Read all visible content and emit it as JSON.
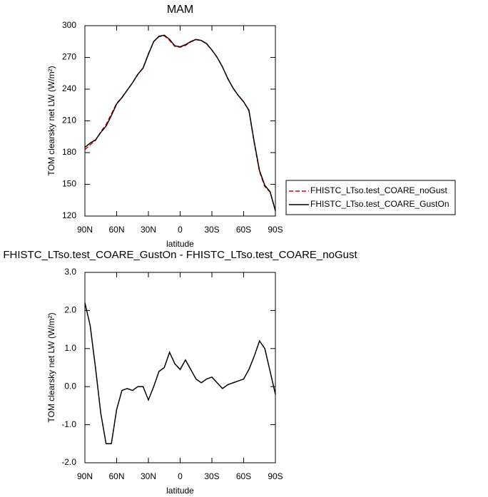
{
  "chart_data": [
    {
      "type": "line",
      "title": "MAM",
      "x_label": "latitude",
      "y_label": "TOM clearsky net LW (W/m²)",
      "x": [
        90,
        85,
        80,
        75,
        70,
        65,
        60,
        55,
        50,
        45,
        40,
        35,
        30,
        25,
        20,
        15,
        10,
        5,
        0,
        -5,
        -10,
        -15,
        -20,
        -25,
        -30,
        -35,
        -40,
        -45,
        -50,
        -55,
        -60,
        -65,
        -70,
        -75,
        -80,
        -85,
        -90
      ],
      "xlim": [
        90,
        -90
      ],
      "xticks": [
        {
          "value": 90,
          "label": "90N"
        },
        {
          "value": 60,
          "label": "60N"
        },
        {
          "value": 30,
          "label": "30N"
        },
        0,
        {
          "value": -30,
          "label": "30S"
        },
        {
          "value": -60,
          "label": "60S"
        },
        {
          "value": -90,
          "label": "90S"
        }
      ],
      "ylim": [
        120,
        300
      ],
      "yticks": [
        120,
        150,
        180,
        210,
        240,
        270,
        300
      ],
      "legend": "right",
      "series": [
        {
          "name": "FHISTC_LTso.test_COARE_noGust",
          "color": "#e00000",
          "line_style": "dashed",
          "values": [
            182.8,
            187.4,
            191.5,
            199.7,
            206.5,
            216.5,
            226.6,
            232.1,
            239.1,
            246.1,
            254,
            260,
            273.4,
            285,
            289.6,
            290.5,
            286.1,
            280.4,
            279.6,
            281.3,
            284.6,
            286.8,
            285.9,
            282.8,
            276.8,
            269.9,
            261.1,
            250,
            240.9,
            233.9,
            227.8,
            219.6,
            189.2,
            161.8,
            148,
            142.6,
            125.2
          ]
        },
        {
          "name": "FHISTC_LTso.test_COARE_GustOn",
          "color": "#000000",
          "line_style": "solid",
          "values": [
            185,
            189,
            192,
            199,
            205,
            215,
            226,
            232,
            239,
            246,
            254,
            260,
            273,
            285,
            290,
            291,
            287,
            281,
            280,
            282,
            285,
            287,
            286,
            283,
            277,
            270,
            261,
            250,
            241,
            234,
            228,
            220,
            190,
            163,
            149,
            143,
            125
          ]
        }
      ]
    },
    {
      "type": "line",
      "title": "FHISTC_LTso.test_COARE_GustOn - FHISTC_LTso.test_COARE_noGust",
      "x_label": "latitude",
      "y_label": "TOM clearsky net LW (W/m²)",
      "x": [
        90,
        85,
        80,
        75,
        70,
        65,
        60,
        55,
        50,
        45,
        40,
        35,
        30,
        25,
        20,
        15,
        10,
        5,
        0,
        -5,
        -10,
        -15,
        -20,
        -25,
        -30,
        -35,
        -40,
        -45,
        -50,
        -55,
        -60,
        -65,
        -70,
        -75,
        -80,
        -85,
        -90
      ],
      "xlim": [
        90,
        -90
      ],
      "xticks": [
        {
          "value": 90,
          "label": "90N"
        },
        {
          "value": 60,
          "label": "60N"
        },
        {
          "value": 30,
          "label": "30N"
        },
        0,
        {
          "value": -30,
          "label": "30S"
        },
        {
          "value": -60,
          "label": "60S"
        },
        {
          "value": -90,
          "label": "90S"
        }
      ],
      "ylim": [
        -2,
        3
      ],
      "yticks": [
        {
          "value": -2,
          "label": "-2.0"
        },
        {
          "value": -1,
          "label": "-1.0"
        },
        {
          "value": 0,
          "label": "0.0"
        },
        {
          "value": 1,
          "label": "1.0"
        },
        {
          "value": 2,
          "label": "2.0"
        },
        {
          "value": 3,
          "label": "3.0"
        }
      ],
      "series": [
        {
          "color": "#000000",
          "line_style": "solid",
          "values": [
            2.2,
            1.6,
            0.5,
            -0.7,
            -1.5,
            -1.5,
            -0.6,
            -0.1,
            -0.05,
            -0.1,
            0,
            0,
            -0.35,
            0,
            0.4,
            0.5,
            0.9,
            0.6,
            0.45,
            0.7,
            0.45,
            0.2,
            0.1,
            0.2,
            0.25,
            0.1,
            -0.05,
            0.05,
            0.1,
            0.15,
            0.2,
            0.45,
            0.8,
            1.2,
            1.0,
            0.4,
            -0.2
          ]
        }
      ]
    }
  ]
}
